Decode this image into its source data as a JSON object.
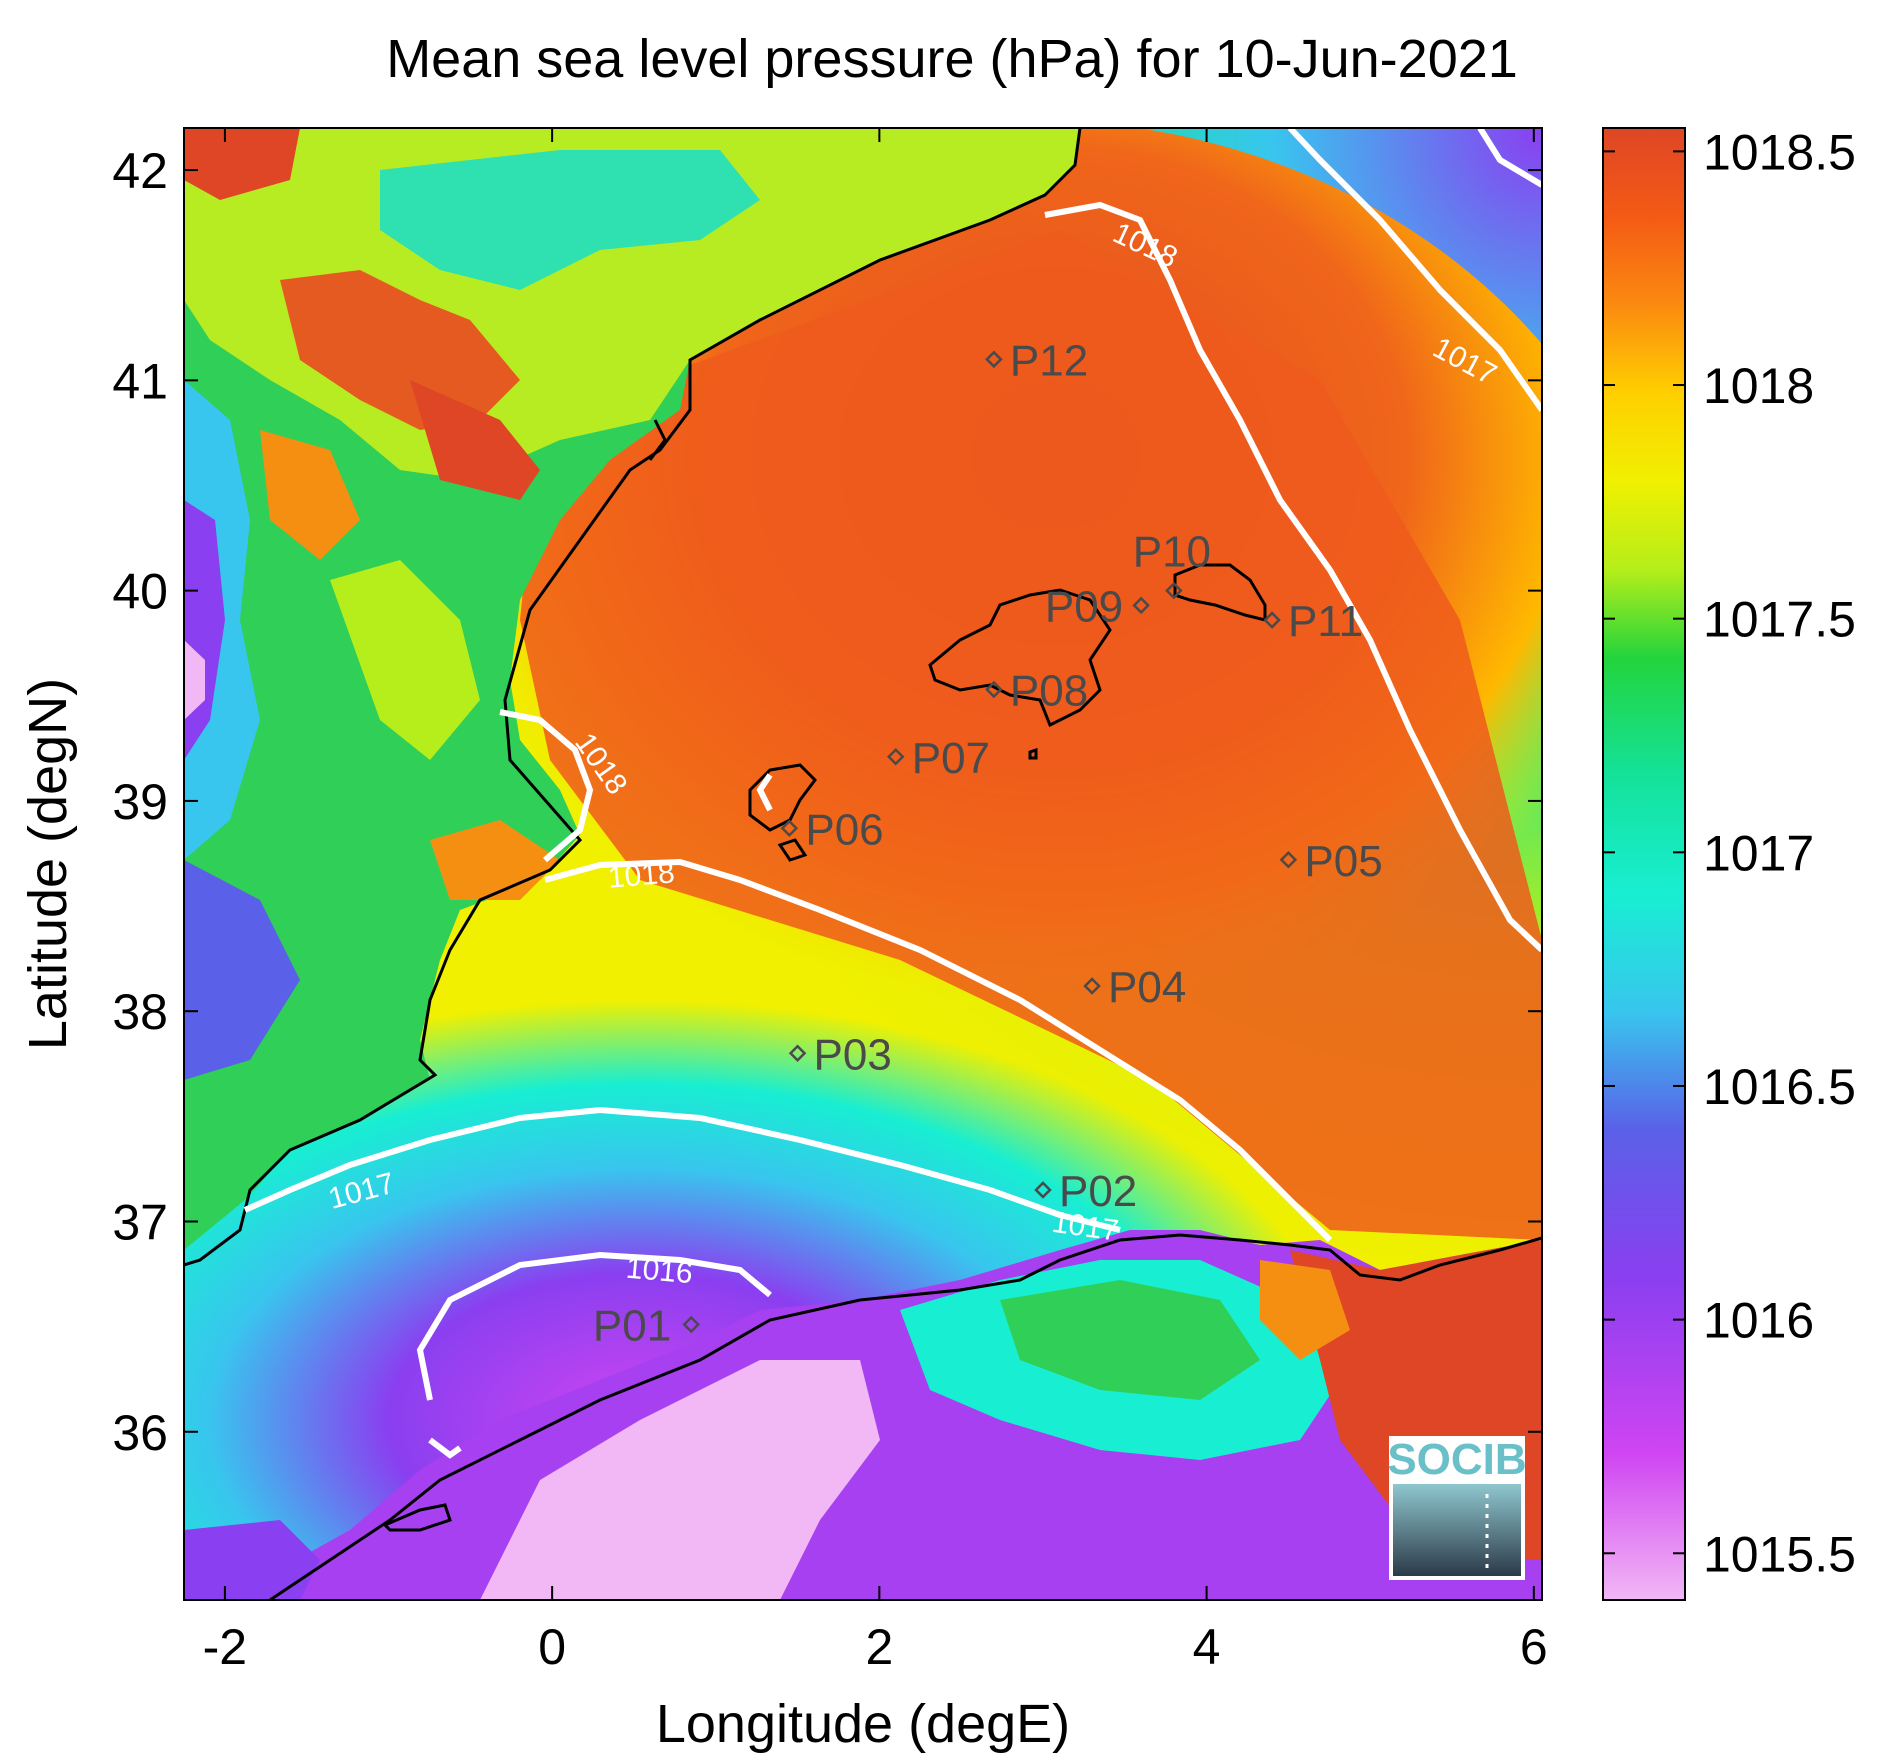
{
  "title": "Mean sea level pressure (hPa) for 10-Jun-2021",
  "x_axis": {
    "label": "Longitude (degE)",
    "ticks": [
      {
        "value": -2,
        "label": "-2"
      },
      {
        "value": 0,
        "label": "0"
      },
      {
        "value": 2,
        "label": "2"
      },
      {
        "value": 4,
        "label": "4"
      },
      {
        "value": 6,
        "label": "6"
      }
    ],
    "range": [
      -2.25,
      6.05
    ]
  },
  "y_axis": {
    "label": "Latitude (degN)",
    "ticks": [
      {
        "value": 36,
        "label": "36"
      },
      {
        "value": 37,
        "label": "37"
      },
      {
        "value": 38,
        "label": "38"
      },
      {
        "value": 39,
        "label": "39"
      },
      {
        "value": 40,
        "label": "40"
      },
      {
        "value": 41,
        "label": "41"
      },
      {
        "value": 42,
        "label": "42"
      }
    ],
    "range": [
      35.2,
      42.2
    ]
  },
  "colorbar": {
    "range": [
      1015.4,
      1018.55
    ],
    "ticks": [
      {
        "value": 1015.5,
        "label": "1015.5"
      },
      {
        "value": 1016,
        "label": "1016"
      },
      {
        "value": 1016.5,
        "label": "1016.5"
      },
      {
        "value": 1017,
        "label": "1017"
      },
      {
        "value": 1017.5,
        "label": "1017.5"
      },
      {
        "value": 1018,
        "label": "1018"
      },
      {
        "value": 1018.5,
        "label": "1018.5"
      }
    ],
    "colors": [
      "#f2b7f5",
      "#cf45f2",
      "#8a3ff0",
      "#5a61e8",
      "#38c6ee",
      "#18eed2",
      "#14e29a",
      "#23d43c",
      "#b5ee1a",
      "#f0f000",
      "#ffcf00",
      "#fb8a10",
      "#f45a14",
      "#de4626"
    ]
  },
  "points": [
    {
      "label": "P01",
      "lon": 0.85,
      "lat": 36.51
    },
    {
      "label": "P02",
      "lon": 3.0,
      "lat": 37.15
    },
    {
      "label": "P03",
      "lon": 1.5,
      "lat": 37.8
    },
    {
      "label": "P04",
      "lon": 3.3,
      "lat": 38.12
    },
    {
      "label": "P05",
      "lon": 4.5,
      "lat": 38.72
    },
    {
      "label": "P06",
      "lon": 1.45,
      "lat": 38.87
    },
    {
      "label": "P07",
      "lon": 2.1,
      "lat": 39.21
    },
    {
      "label": "P08",
      "lon": 2.7,
      "lat": 39.53
    },
    {
      "label": "P09",
      "lon": 3.6,
      "lat": 39.93
    },
    {
      "label": "P10",
      "lon": 3.8,
      "lat": 40.0
    },
    {
      "label": "P11",
      "lon": 4.4,
      "lat": 39.86
    },
    {
      "label": "P12",
      "lon": 2.7,
      "lat": 41.1
    }
  ],
  "contour_labels": [
    {
      "text": "1018",
      "lon": 3.6,
      "lat": 41.6
    },
    {
      "text": "1017",
      "lon": 5.55,
      "lat": 41.05
    },
    {
      "text": "1018",
      "lon": 0.25,
      "lat": 39.15
    },
    {
      "text": "1018",
      "lon": 0.55,
      "lat": 38.6
    },
    {
      "text": "1017",
      "lon": -1.15,
      "lat": 37.1
    },
    {
      "text": "1017",
      "lon": 3.25,
      "lat": 36.93
    },
    {
      "text": "1016",
      "lon": 0.65,
      "lat": 36.72
    }
  ],
  "logo": {
    "text": "SOCIB"
  }
}
